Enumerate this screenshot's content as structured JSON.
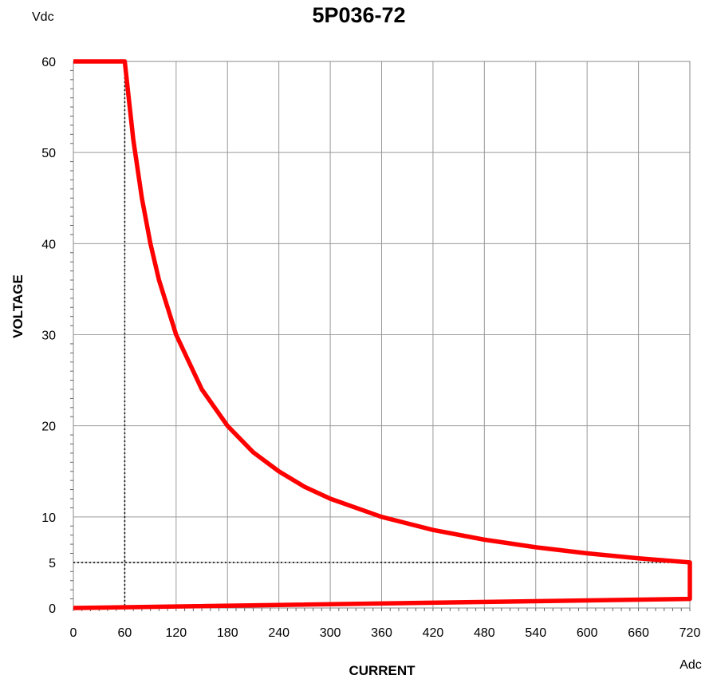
{
  "chart_data": {
    "type": "line",
    "title": "5P036-72",
    "xlabel": "CURRENT",
    "ylabel": "VOLTAGE",
    "x_unit": "Adc",
    "y_unit": "Vdc",
    "xlim": [
      0,
      720
    ],
    "ylim": [
      0,
      60
    ],
    "x_ticks": [
      0,
      60,
      120,
      180,
      240,
      300,
      360,
      420,
      480,
      540,
      600,
      660,
      720
    ],
    "y_ticks": [
      0,
      5,
      10,
      20,
      30,
      40,
      50,
      60
    ],
    "grid": true,
    "legend": "none",
    "series": [
      {
        "color": "#ff0000",
        "points": [
          [
            0,
            60
          ],
          [
            60,
            60
          ],
          [
            70,
            51.4
          ],
          [
            80,
            45
          ],
          [
            90,
            40
          ],
          [
            100,
            36
          ],
          [
            120,
            30
          ],
          [
            150,
            24
          ],
          [
            180,
            20
          ],
          [
            210,
            17.1
          ],
          [
            240,
            15
          ],
          [
            270,
            13.3
          ],
          [
            300,
            12
          ],
          [
            360,
            10
          ],
          [
            420,
            8.57
          ],
          [
            480,
            7.5
          ],
          [
            540,
            6.67
          ],
          [
            600,
            6
          ],
          [
            660,
            5.45
          ],
          [
            720,
            5
          ],
          [
            720,
            1
          ],
          [
            0,
            0
          ]
        ]
      }
    ],
    "reference_lines": [
      {
        "points": [
          [
            60,
            60
          ],
          [
            60,
            0
          ]
        ],
        "style": "dotted"
      },
      {
        "points": [
          [
            0,
            5
          ],
          [
            720,
            5
          ]
        ],
        "style": "dotted"
      }
    ]
  }
}
